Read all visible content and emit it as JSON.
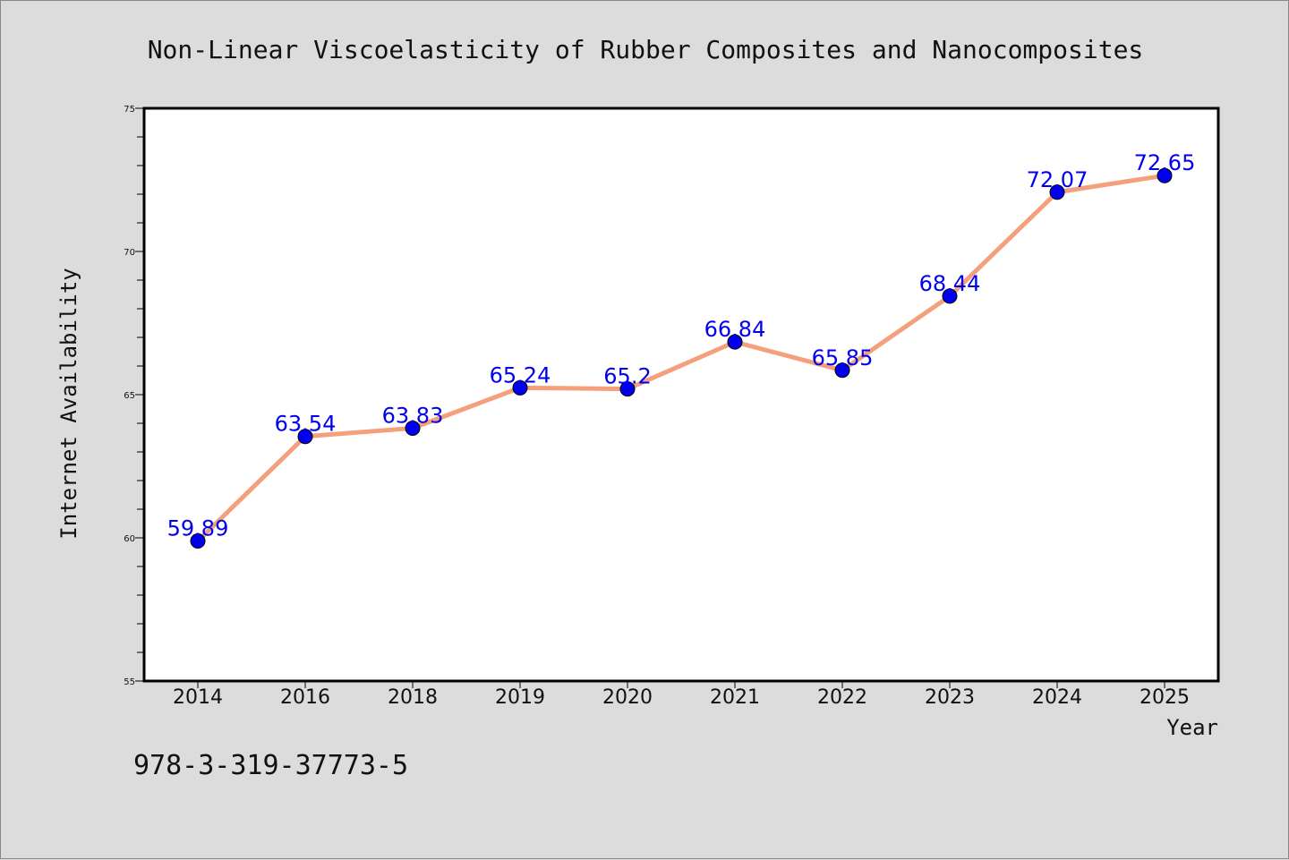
{
  "chart_data": {
    "type": "line",
    "title": "Non-Linear Viscoelasticity of Rubber Composites and Nanocomposites",
    "xlabel": "Year",
    "ylabel": "Internet Availability",
    "categories": [
      "2014",
      "2016",
      "2018",
      "2019",
      "2020",
      "2021",
      "2022",
      "2023",
      "2024",
      "2025"
    ],
    "series": [
      {
        "values": [
          59.89,
          63.54,
          63.83,
          65.24,
          65.2,
          66.84,
          65.85,
          68.44,
          72.07,
          72.65
        ],
        "labels": [
          "59.89",
          "63.54",
          "63.83",
          "65.24",
          "65.2",
          "66.84",
          "65.85",
          "68.44",
          "72.07",
          "72.65"
        ]
      }
    ],
    "ylim": [
      55,
      75
    ],
    "yticks": [
      55,
      60,
      65,
      70,
      75
    ],
    "ytick_labels": [
      "55",
      "60",
      "65",
      "70",
      "75"
    ],
    "grid": false,
    "line_color": "#f4a07c",
    "marker_color": "#0000ee",
    "label_color": "#0000ee"
  },
  "footer": {
    "text": "978-3-319-37773-5"
  }
}
